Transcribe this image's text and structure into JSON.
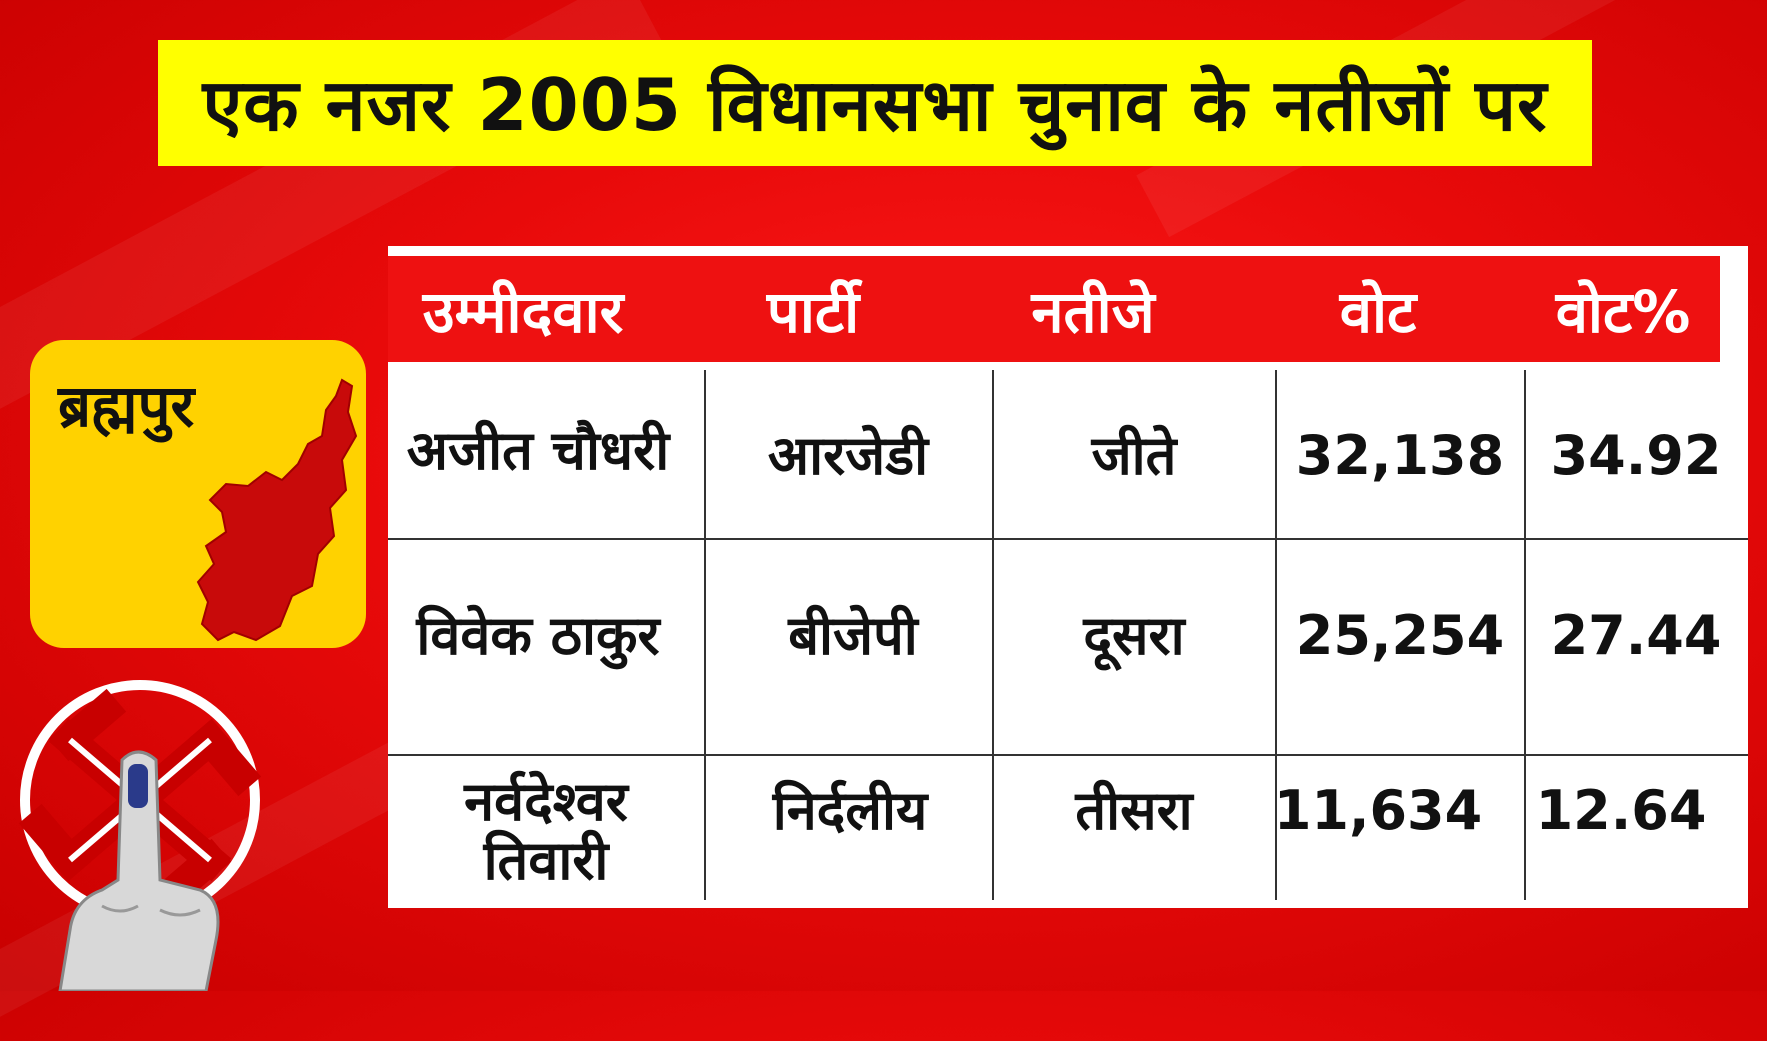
{
  "title": "एक नजर 2005 विधानसभा चुनाव के नतीजों पर",
  "constituency": "ब्रह्मपुर",
  "colors": {
    "background": "#e80a0a",
    "title_bg": "#ffff00",
    "badge_bg": "#ffd200",
    "map_fill": "#c80a0a",
    "header_bg": "#ee1111"
  },
  "icons": {
    "map": "constituency-map-icon",
    "symbol": "election-swastika-icon",
    "finger": "inked-finger-icon"
  },
  "table": {
    "headers": [
      "उम्मीदवार",
      "पार्टी",
      "नतीजे",
      "वोट",
      "वोट%"
    ],
    "rows": [
      {
        "candidate": "अजीत चौधरी",
        "party": "आरजेडी",
        "result": "जीते",
        "votes": "32,138",
        "vote_pct": "34.92"
      },
      {
        "candidate": "विवेक ठाकुर",
        "party": "बीजेपी",
        "result": "दूसरा",
        "votes": "25,254",
        "vote_pct": "27.44"
      },
      {
        "candidate": "नर्वदेश्वर तिवारी",
        "party": "निर्दलीय",
        "result": "तीसरा",
        "votes": "11,634",
        "vote_pct": "12.64"
      }
    ]
  }
}
